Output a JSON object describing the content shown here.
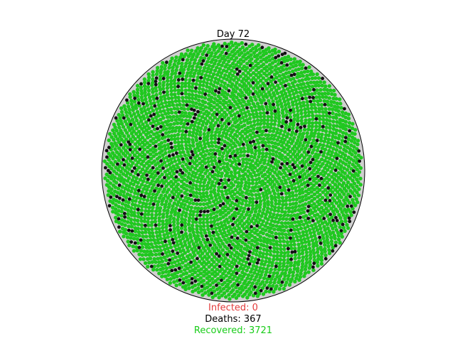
{
  "chart_data": {
    "type": "scatter",
    "title": "Day 72",
    "population": 4088,
    "counts": {
      "infected": 0,
      "deaths": 367,
      "recovered": 3721
    },
    "legend": [
      {
        "name": "infected",
        "text": "Infected: 0",
        "color": "#e33b3b"
      },
      {
        "name": "deaths",
        "text": "Deaths: 367",
        "color": "#000000"
      },
      {
        "name": "recovered",
        "text": "Recovered: 3721",
        "color": "#18cc18"
      }
    ],
    "colors": {
      "recovered": "#1fc81f",
      "dead": "#111111",
      "empty": "#d0d0d0",
      "boundary": "#000000"
    },
    "grid": false,
    "axes_visible": false
  }
}
